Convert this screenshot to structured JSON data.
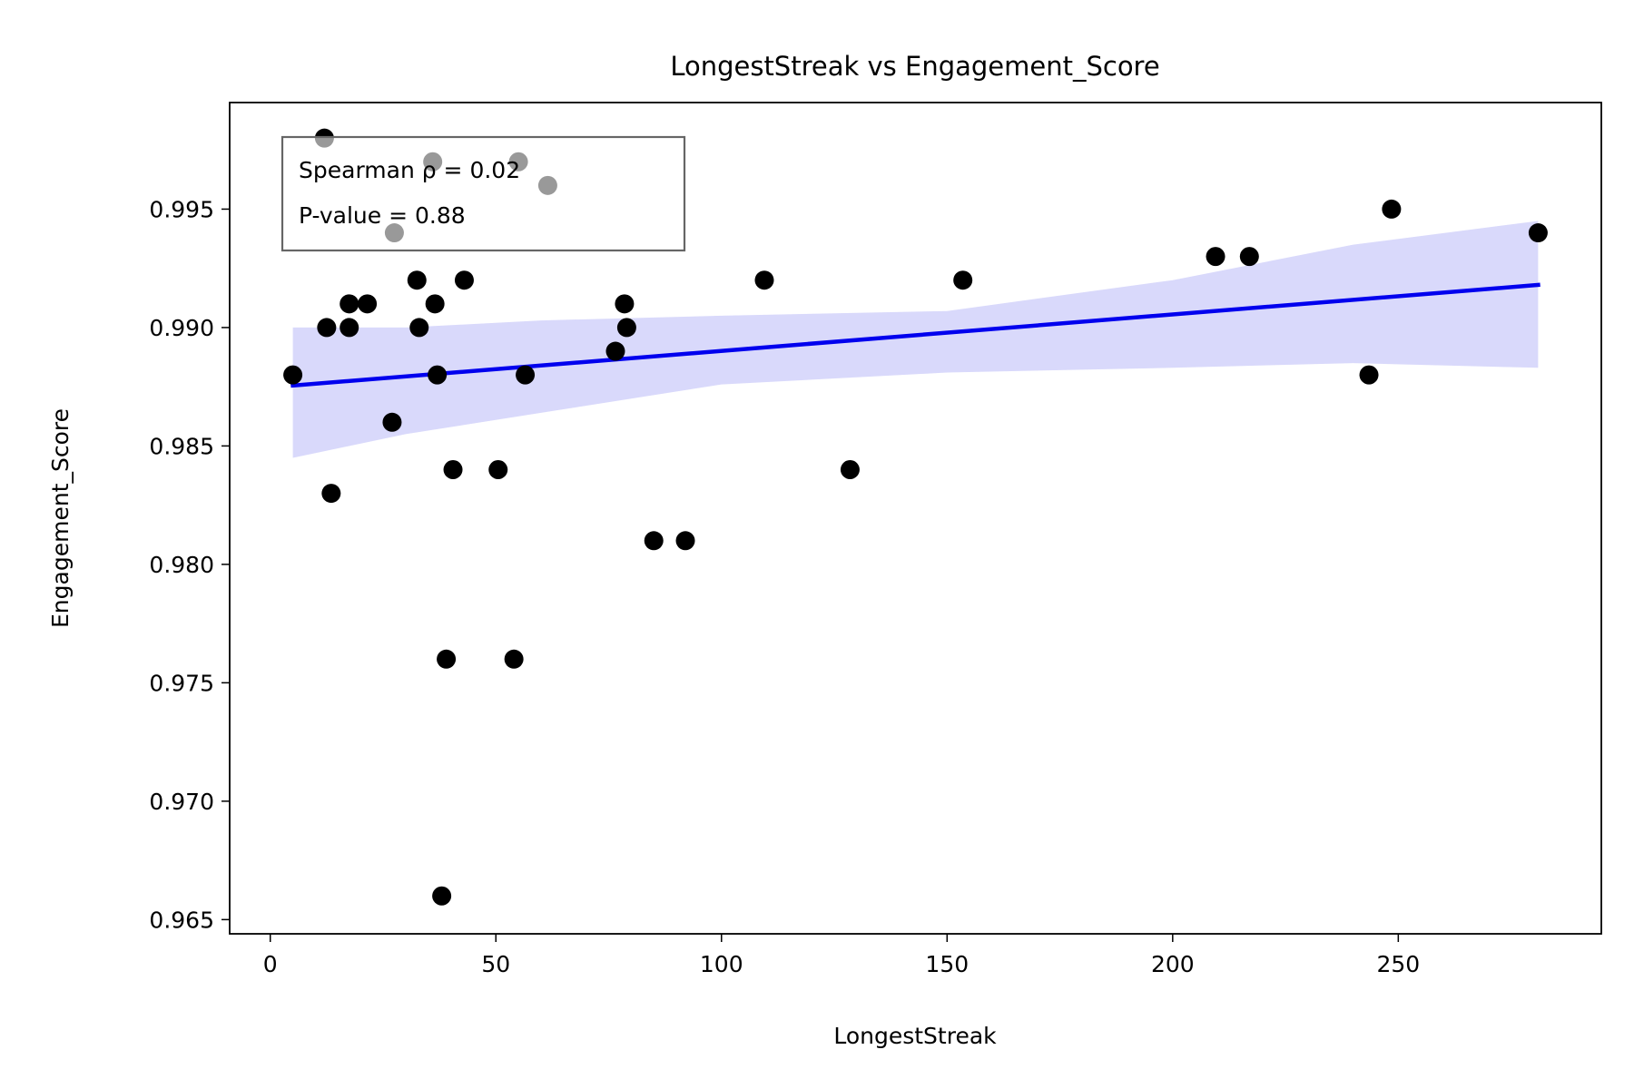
{
  "chart_data": {
    "type": "scatter",
    "title": "LongestStreak vs Engagement_Score",
    "xlabel": "LongestStreak",
    "ylabel": "Engagement_Score",
    "xlim": [
      -9,
      295
    ],
    "ylim": [
      0.9644,
      0.9995
    ],
    "xticks": [
      0,
      50,
      100,
      150,
      200,
      250
    ],
    "yticks": [
      0.965,
      0.97,
      0.975,
      0.98,
      0.985,
      0.99,
      0.995
    ],
    "ytick_labels": [
      "0.965",
      "0.970",
      "0.975",
      "0.980",
      "0.985",
      "0.990",
      "0.995"
    ],
    "grid": false,
    "points": [
      {
        "x": 5,
        "y": 0.988
      },
      {
        "x": 12,
        "y": 0.998
      },
      {
        "x": 12.5,
        "y": 0.99
      },
      {
        "x": 13.5,
        "y": 0.983
      },
      {
        "x": 17.5,
        "y": 0.991
      },
      {
        "x": 17.5,
        "y": 0.99
      },
      {
        "x": 21.5,
        "y": 0.991
      },
      {
        "x": 27,
        "y": 0.986
      },
      {
        "x": 27.5,
        "y": 0.994
      },
      {
        "x": 32.5,
        "y": 0.992
      },
      {
        "x": 33,
        "y": 0.99
      },
      {
        "x": 36,
        "y": 0.997
      },
      {
        "x": 36.5,
        "y": 0.991
      },
      {
        "x": 37,
        "y": 0.988
      },
      {
        "x": 38,
        "y": 0.966
      },
      {
        "x": 39,
        "y": 0.976
      },
      {
        "x": 40.5,
        "y": 0.984
      },
      {
        "x": 43,
        "y": 0.992
      },
      {
        "x": 50.5,
        "y": 0.984
      },
      {
        "x": 54,
        "y": 0.976
      },
      {
        "x": 55,
        "y": 0.997
      },
      {
        "x": 56.5,
        "y": 0.988
      },
      {
        "x": 61.5,
        "y": 0.996
      },
      {
        "x": 76.5,
        "y": 0.989
      },
      {
        "x": 78.5,
        "y": 0.991
      },
      {
        "x": 79,
        "y": 0.99
      },
      {
        "x": 85,
        "y": 0.981
      },
      {
        "x": 92,
        "y": 0.981
      },
      {
        "x": 109.5,
        "y": 0.992
      },
      {
        "x": 128.5,
        "y": 0.984
      },
      {
        "x": 153.5,
        "y": 0.992
      },
      {
        "x": 209.5,
        "y": 0.993
      },
      {
        "x": 217,
        "y": 0.993
      },
      {
        "x": 243.5,
        "y": 0.988
      },
      {
        "x": 248.5,
        "y": 0.995
      },
      {
        "x": 281,
        "y": 0.994
      }
    ],
    "regression_line": {
      "x": [
        5,
        281
      ],
      "y": [
        0.98755,
        0.9918
      ],
      "color": "#0000ee"
    },
    "confidence_band": {
      "color": "#d9d9fb",
      "x": [
        5,
        30,
        60,
        100,
        150,
        200,
        240,
        281
      ],
      "upper": [
        0.99,
        0.99,
        0.9903,
        0.9905,
        0.9907,
        0.992,
        0.9935,
        0.9945
      ],
      "lower": [
        0.9845,
        0.9855,
        0.9864,
        0.9876,
        0.9881,
        0.9883,
        0.9885,
        0.9883
      ]
    },
    "annotation": {
      "lines": [
        "Spearman ρ = 0.02",
        "P-value = 0.88"
      ],
      "placement": "top-left"
    },
    "colors": {
      "points": "#000000",
      "line": "#0000ee",
      "band": "#d9d9fb",
      "box_border": "#666666"
    }
  }
}
